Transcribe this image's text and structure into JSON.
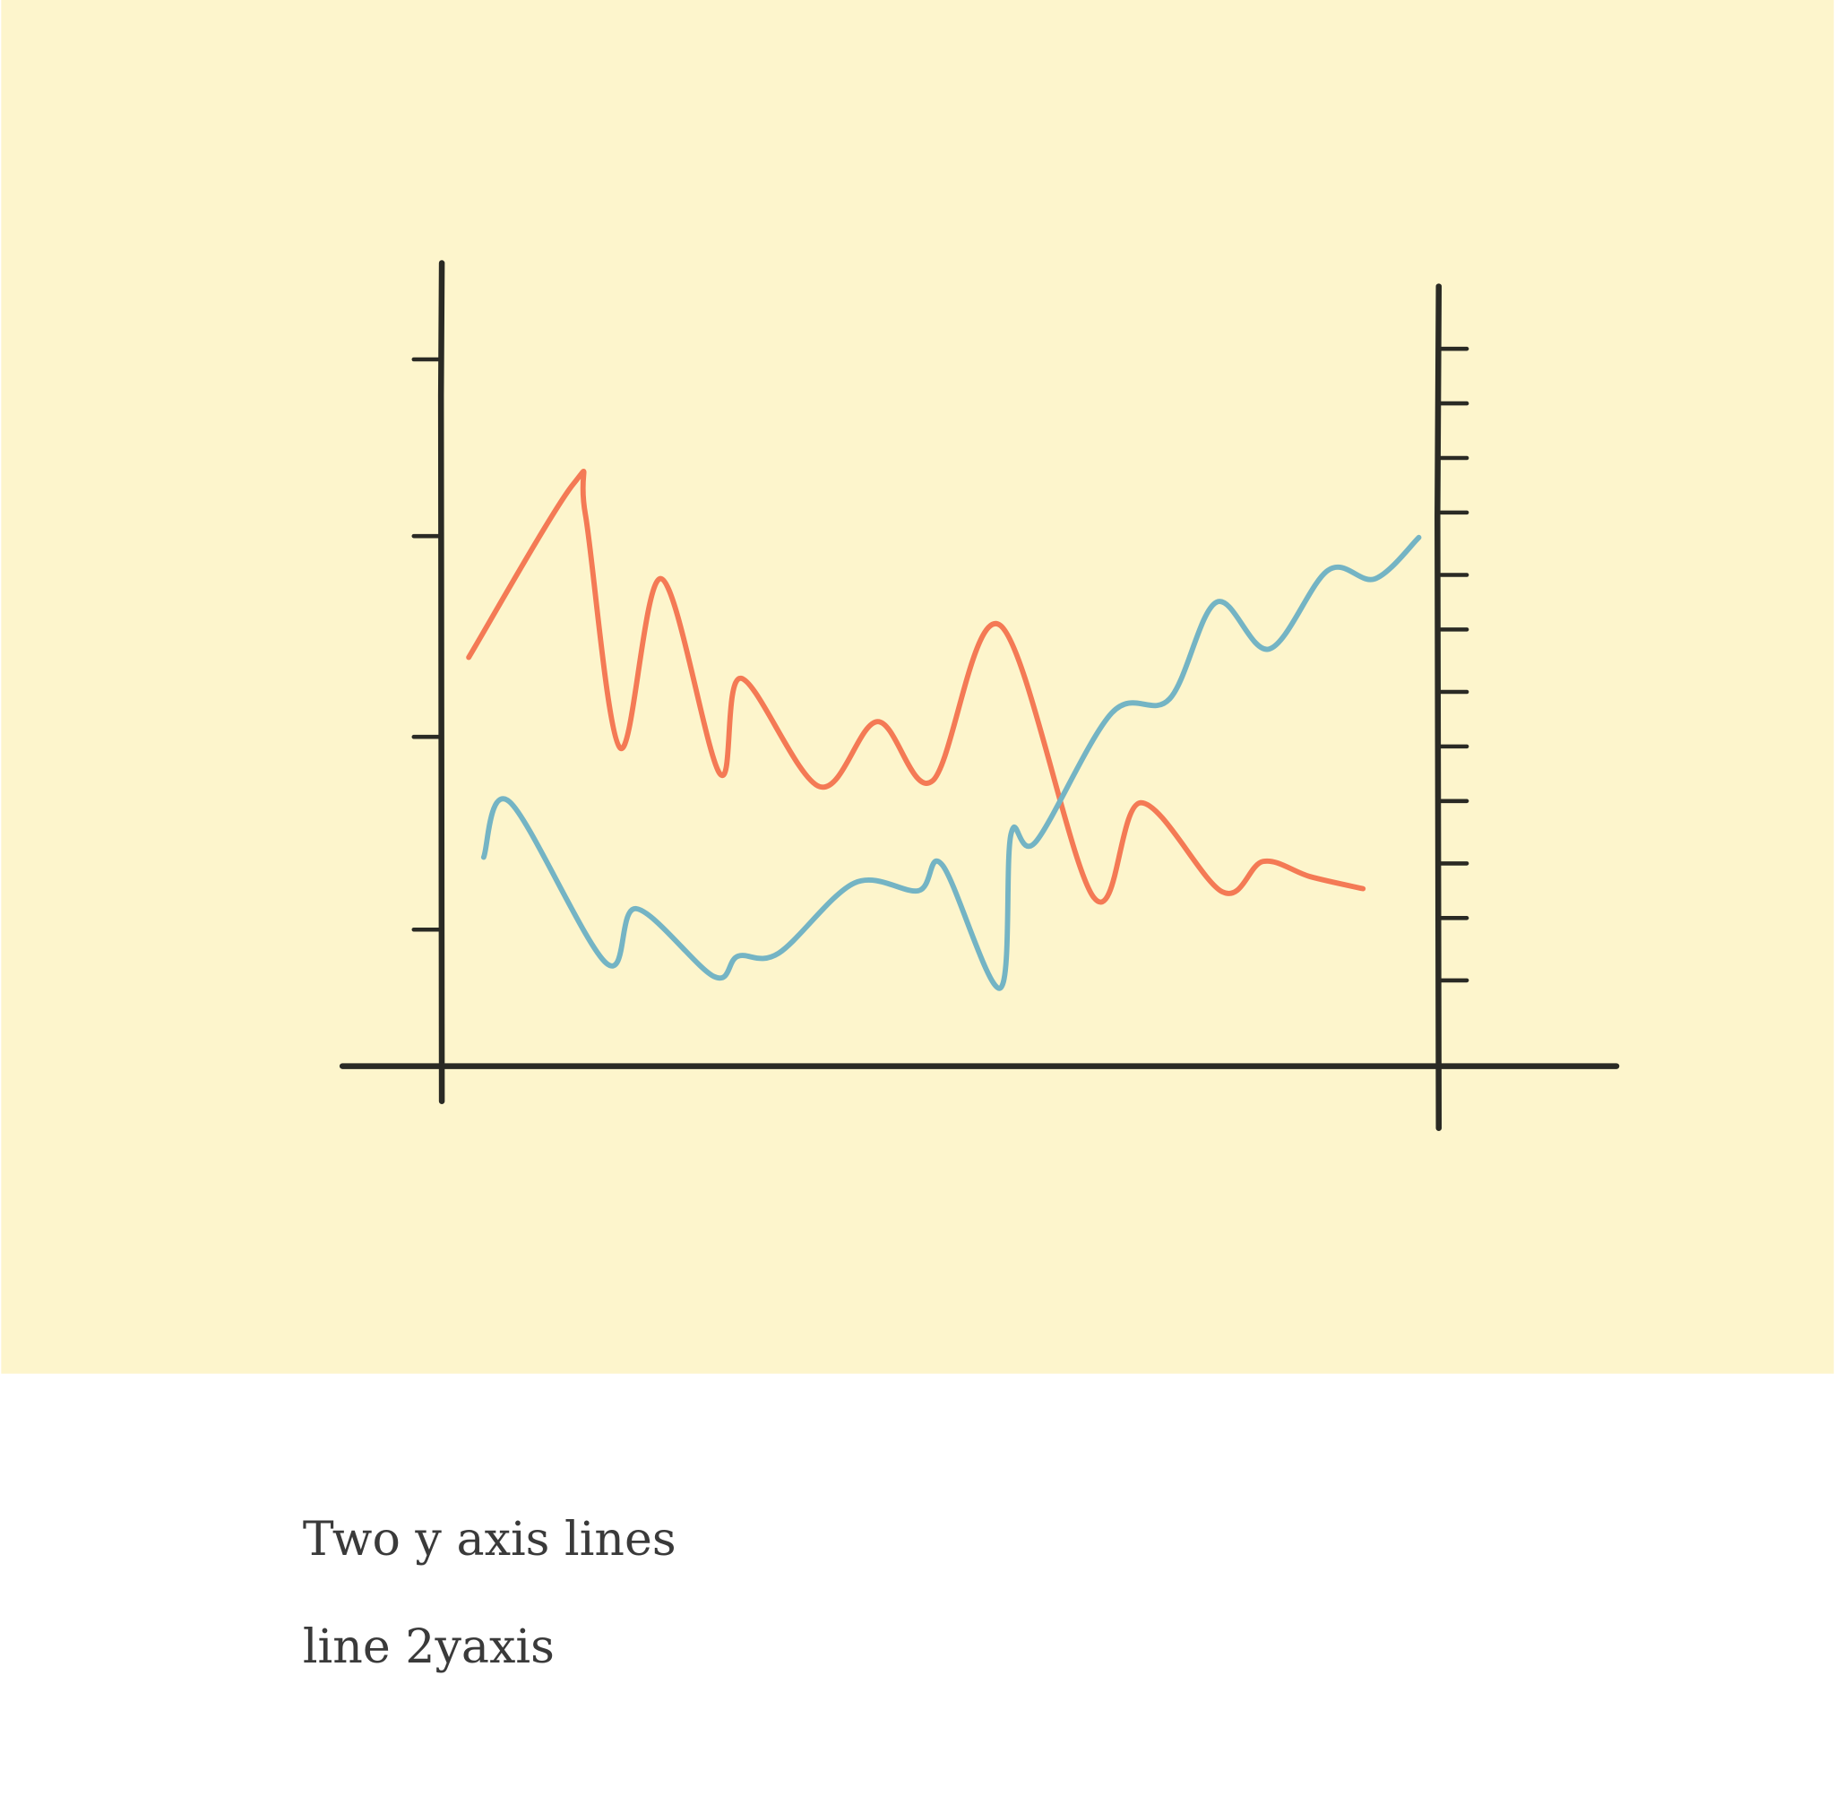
{
  "chart_data": {
    "type": "line",
    "title": "Two y axis lines",
    "subtitle": "line 2yaxis",
    "xlim": [
      0,
      100
    ],
    "ylim": [
      0,
      100
    ],
    "yticks": [
      17,
      41,
      66,
      88
    ],
    "y2lim": [
      0,
      100
    ],
    "y2ticks": [
      11,
      19,
      26,
      34,
      41,
      48,
      56,
      63,
      71,
      78,
      85,
      92
    ],
    "series": [
      {
        "color": "#f47a55",
        "axis": "y",
        "x": [
          2.7,
          13.2,
          14.4,
          17.9,
          22.0,
          27.9,
          30.0,
          37.9,
          43.7,
          49.2,
          56.0,
          65.4,
          70.1,
          78.3,
          82.4,
          87.1,
          92.4
        ],
        "values": [
          50.9,
          72.5,
          68.7,
          39.6,
          60.7,
          36.4,
          48.3,
          34.8,
          42.9,
          35.5,
          54.9,
          21.0,
          32.8,
          21.7,
          25.5,
          23.6,
          22.1
        ]
      },
      {
        "color": "#74b4c4",
        "axis": "y2",
        "x": [
          4.2,
          6.8,
          16.5,
          19.5,
          27.3,
          29.7,
          33.8,
          41.4,
          47.8,
          50.2,
          56.0,
          57.1,
          59.6,
          67.2,
          73.0,
          77.7,
          83.0,
          88.9,
          93.6,
          98.0
        ],
        "values": [
          26.8,
          33.9,
          13.2,
          20.2,
          11.5,
          14.1,
          14.5,
          23.5,
          22.5,
          25.8,
          10.0,
          29.8,
          28.8,
          45.3,
          47.1,
          59.5,
          53.5,
          63.6,
          62.5,
          67.8
        ]
      }
    ]
  }
}
